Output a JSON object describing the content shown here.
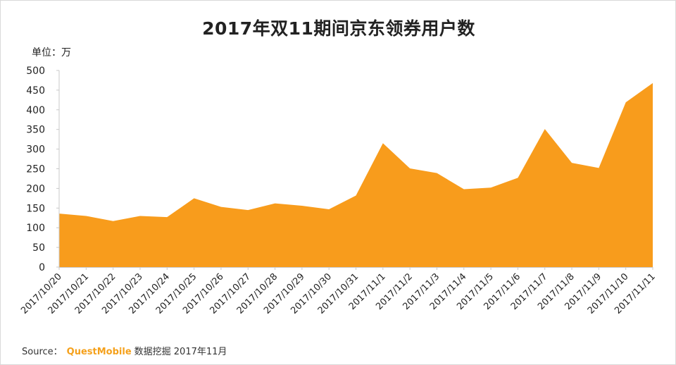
{
  "chart_data": {
    "type": "area",
    "title": "2017年双11期间京东领券用户数",
    "unit_label": "单位：万",
    "categories": [
      "2017/10/20",
      "2017/10/21",
      "2017/10/22",
      "2017/10/23",
      "2017/10/24",
      "2017/10/25",
      "2017/10/26",
      "2017/10/27",
      "2017/10/28",
      "2017/10/29",
      "2017/10/30",
      "2017/10/31",
      "2017/11/1",
      "2017/11/2",
      "2017/11/3",
      "2017/11/4",
      "2017/11/5",
      "2017/11/6",
      "2017/11/7",
      "2017/11/8",
      "2017/11/9",
      "2017/11/10",
      "2017/11/11"
    ],
    "values": [
      136,
      130,
      117,
      130,
      127,
      175,
      153,
      145,
      162,
      156,
      147,
      182,
      315,
      251,
      239,
      198,
      202,
      227,
      351,
      265,
      252,
      419,
      468
    ],
    "ylim": [
      0,
      500
    ],
    "yticks": [
      "0",
      "50",
      "100",
      "150",
      "200",
      "250",
      "300",
      "350",
      "400",
      "450",
      "500"
    ],
    "grid": false,
    "legend": "none",
    "fill_color": "#f89c1c"
  },
  "source": {
    "prefix": "Source：",
    "brand": "QuestMobile",
    "suffix": "数据挖掘 2017年11月"
  }
}
